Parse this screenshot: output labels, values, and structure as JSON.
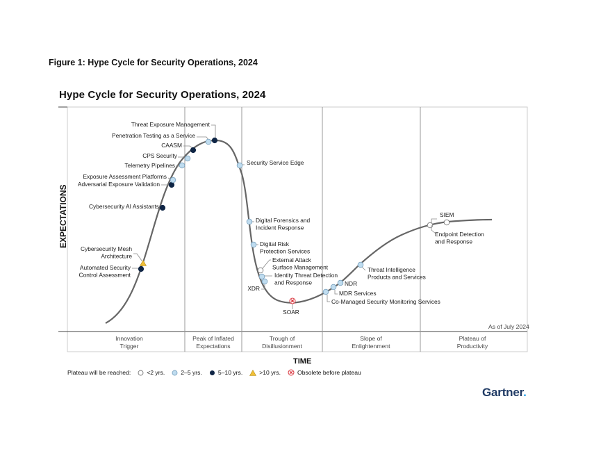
{
  "figure_caption": "Figure 1: Hype Cycle for Security Operations, 2024",
  "chart_title": "Hype Cycle for Security Operations, 2024",
  "y_axis_label": "EXPECTATIONS",
  "x_axis_label": "TIME",
  "as_of": "As of July 2024",
  "phases": [
    {
      "line1": "Innovation",
      "line2": "Trigger"
    },
    {
      "line1": "Peak of Inflated",
      "line2": "Expectations"
    },
    {
      "line1": "Trough of",
      "line2": "Disillusionment"
    },
    {
      "line1": "Slope of",
      "line2": "Enlightenment"
    },
    {
      "line1": "Plateau of",
      "line2": "Productivity"
    }
  ],
  "technologies": [
    {
      "name": "Automated Security Control Assessment",
      "line1": "Automated Security",
      "line2": "Control Assessment",
      "plateau": "5-10"
    },
    {
      "name": "Cybersecurity Mesh Architecture",
      "line1": "Cybersecurity Mesh",
      "line2": "Architecture",
      "plateau": ">10"
    },
    {
      "name": "Cybersecurity AI Assistants",
      "line1": "Cybersecurity AI Assistants",
      "line2": "",
      "plateau": "5-10"
    },
    {
      "name": "Adversarial Exposure Validation",
      "line1": "Adversarial Exposure Validation",
      "line2": "",
      "plateau": "5-10"
    },
    {
      "name": "Exposure Assessment Platforms",
      "line1": "Exposure Assessment Platforms",
      "line2": "",
      "plateau": "2-5"
    },
    {
      "name": "Telemetry Pipelines",
      "line1": "Telemetry Pipelines",
      "line2": "",
      "plateau": "2-5"
    },
    {
      "name": "CPS Security",
      "line1": "CPS Security",
      "line2": "",
      "plateau": "2-5"
    },
    {
      "name": "CAASM",
      "line1": "CAASM",
      "line2": "",
      "plateau": "5-10"
    },
    {
      "name": "Penetration Testing as a Service",
      "line1": "Penetration Testing as a Service",
      "line2": "",
      "plateau": "2-5"
    },
    {
      "name": "Threat Exposure Management",
      "line1": "Threat Exposure Management",
      "line2": "",
      "plateau": "5-10"
    },
    {
      "name": "Security Service Edge",
      "line1": "Security Service Edge",
      "line2": "",
      "plateau": "2-5"
    },
    {
      "name": "Digital Forensics and Incident Response",
      "line1": "Digital Forensics and",
      "line2": "Incident Response",
      "plateau": "2-5"
    },
    {
      "name": "Digital Risk Protection Services",
      "line1": "Digital Risk",
      "line2": "Protection Services",
      "plateau": "2-5"
    },
    {
      "name": "External Attack Surface Management",
      "line1": "External Attack",
      "line2": "Surface Management",
      "plateau": "<2"
    },
    {
      "name": "Identity Threat Detection and Response",
      "line1": "Identity Threat Detection",
      "line2": "and Response",
      "plateau": "2-5"
    },
    {
      "name": "XDR",
      "line1": "XDR",
      "line2": "",
      "plateau": "2-5"
    },
    {
      "name": "SOAR",
      "line1": "SOAR",
      "line2": "",
      "plateau": "obsolete"
    },
    {
      "name": "Co-Managed Security Monitoring Services",
      "line1": "Co-Managed Security Monitoring Services",
      "line2": "",
      "plateau": "2-5"
    },
    {
      "name": "MDR Services",
      "line1": "MDR Services",
      "line2": "",
      "plateau": "2-5"
    },
    {
      "name": "NDR",
      "line1": "NDR",
      "line2": "",
      "plateau": "2-5"
    },
    {
      "name": "Threat Intelligence Products and Services",
      "line1": "Threat Intelligence",
      "line2": "Products and Services",
      "plateau": "2-5"
    },
    {
      "name": "SIEM",
      "line1": "SIEM",
      "line2": "",
      "plateau": "<2"
    },
    {
      "name": "Endpoint Detection and Response",
      "line1": "Endpoint Detection",
      "line2": "and Response",
      "plateau": "<2"
    }
  ],
  "legend": {
    "title": "Plateau will be reached:",
    "items": [
      {
        "key": "<2",
        "label": "<2 yrs."
      },
      {
        "key": "2-5",
        "label": "2–5 yrs."
      },
      {
        "key": "5-10",
        "label": "5–10 yrs."
      },
      {
        "key": ">10",
        "label": ">10 yrs."
      },
      {
        "key": "obsolete",
        "label": "Obsolete before plateau"
      }
    ]
  },
  "colors": {
    "curve": "#666666",
    "frame": "#cccccc",
    "divider": "#999999",
    "light_blue": "#bfdcef",
    "navy": "#0f2545",
    "yellow": "#f2c037",
    "obsolete_red": "#d9363e",
    "brand_navy": "#1f3a64",
    "brand_dot": "#26a0e8"
  },
  "brand": {
    "name": "Gartner",
    "dot": "."
  }
}
